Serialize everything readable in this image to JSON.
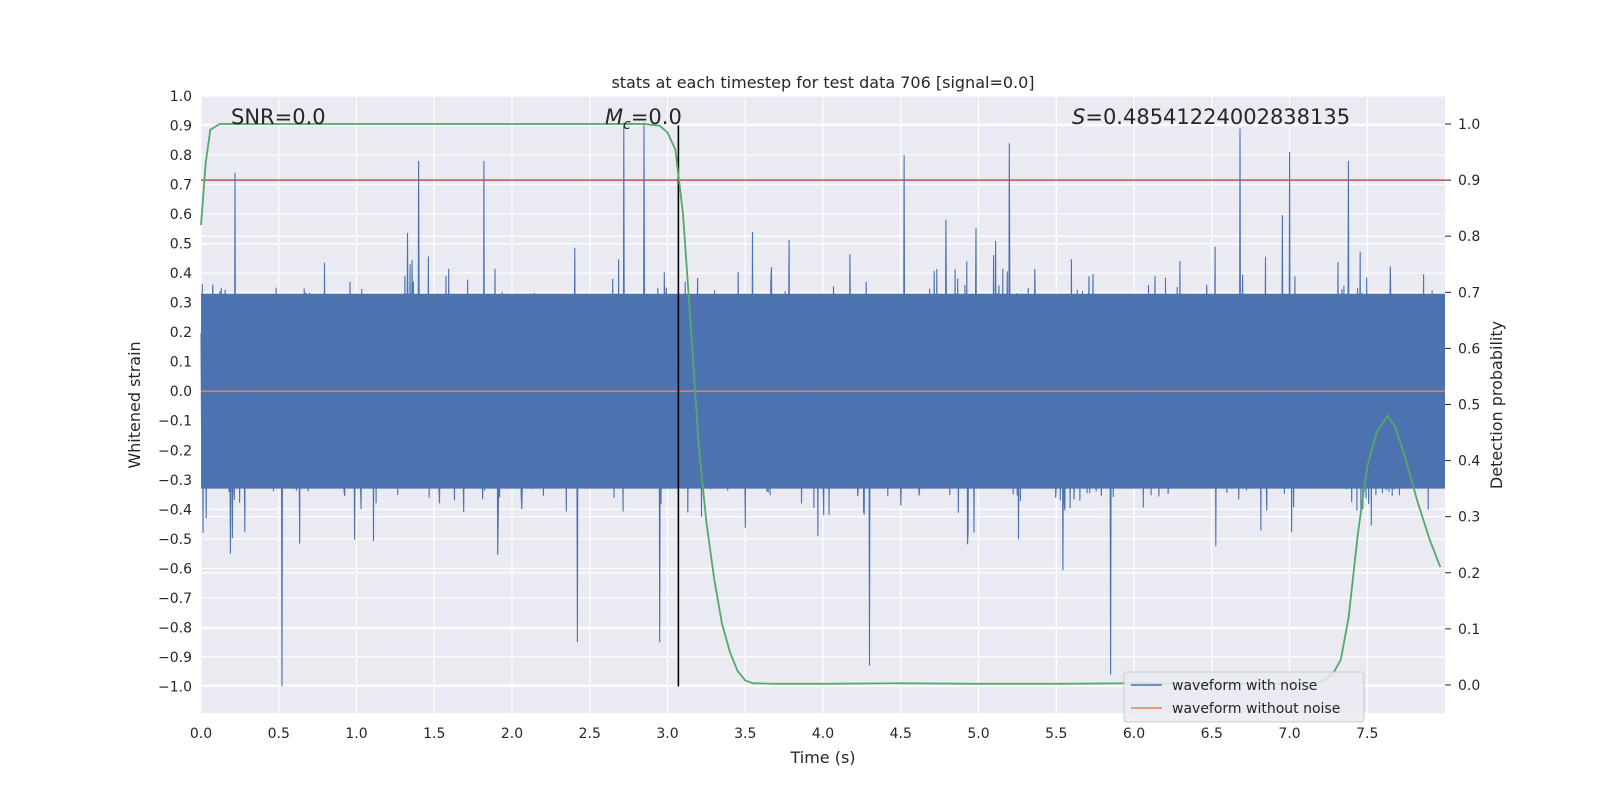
{
  "chart_data": {
    "type": "line",
    "title": "stats at each timestep for test data 706 [signal=0.0]",
    "xlabel": "Time (s)",
    "ylabel": "Whitened strain",
    "y2label": "Detection probability",
    "xlim": [
      0.0,
      8.0
    ],
    "ylim": [
      -1.09,
      1.0
    ],
    "y2lim": [
      -0.05,
      1.05
    ],
    "xticks": [
      "0.0",
      "0.5",
      "1.0",
      "1.5",
      "2.0",
      "2.5",
      "3.0",
      "3.5",
      "4.0",
      "4.5",
      "5.0",
      "5.5",
      "6.0",
      "6.5",
      "7.0",
      "7.5"
    ],
    "yticks": [
      "1.0",
      "0.9",
      "0.8",
      "0.7",
      "0.6",
      "0.5",
      "0.4",
      "0.3",
      "0.2",
      "0.1",
      "0.0",
      "−0.1",
      "−0.2",
      "−0.3",
      "−0.4",
      "−0.5",
      "−0.6",
      "−0.7",
      "−0.8",
      "−0.9",
      "−1.0"
    ],
    "y2ticks": [
      "1.0",
      "0.9",
      "0.8",
      "0.7",
      "0.6",
      "0.5",
      "0.4",
      "0.3",
      "0.2",
      "0.1",
      "0.0"
    ],
    "grid": true,
    "annotations": {
      "snr": "SNR=0.0",
      "mc_symbol": "M",
      "mc_sub": "c",
      "mc_value": "=0.0",
      "s_symbol": "S",
      "s_value": "=0.48541224002838135"
    },
    "threshold": {
      "axis": "y2",
      "value": 0.9,
      "color": "#c44e52"
    },
    "vline": {
      "x": 3.07,
      "color": "#000000"
    },
    "series": [
      {
        "name": "waveform with noise",
        "axis": "y",
        "color": "#4c72b0",
        "note": "dense noise band; core approx ±0.3, envelope peaks",
        "envelope_peaks": [
          {
            "x": 0.22,
            "y": 0.74
          },
          {
            "x": 0.52,
            "y": -1.0
          },
          {
            "x": 1.4,
            "y": 0.78
          },
          {
            "x": 1.82,
            "y": 0.78
          },
          {
            "x": 2.42,
            "y": -0.85
          },
          {
            "x": 2.72,
            "y": 0.91
          },
          {
            "x": 2.85,
            "y": 0.91
          },
          {
            "x": 2.95,
            "y": -0.85
          },
          {
            "x": 4.3,
            "y": -0.93
          },
          {
            "x": 4.52,
            "y": 0.8
          },
          {
            "x": 5.2,
            "y": 0.84
          },
          {
            "x": 5.85,
            "y": -0.96
          },
          {
            "x": 6.68,
            "y": 0.89
          },
          {
            "x": 7.0,
            "y": 0.81
          },
          {
            "x": 7.38,
            "y": 0.78
          }
        ]
      },
      {
        "name": "waveform without noise",
        "axis": "y",
        "color": "#dd8452",
        "x": [
          0.0,
          8.0
        ],
        "y": [
          0.0,
          0.0
        ]
      },
      {
        "name": "detection probability",
        "axis": "y2",
        "color": "#55a868",
        "x": [
          0.0,
          0.03,
          0.06,
          0.12,
          0.5,
          1.0,
          1.5,
          2.0,
          2.5,
          2.7,
          2.85,
          2.95,
          3.0,
          3.05,
          3.1,
          3.15,
          3.2,
          3.25,
          3.3,
          3.35,
          3.4,
          3.45,
          3.5,
          3.55,
          3.7,
          4.0,
          4.5,
          5.0,
          5.5,
          6.0,
          6.5,
          7.0,
          7.2,
          7.28,
          7.33,
          7.38,
          7.44,
          7.5,
          7.56,
          7.63,
          7.68,
          7.75,
          7.82,
          7.9,
          7.97
        ],
        "y": [
          0.82,
          0.93,
          0.99,
          1.0,
          1.0,
          1.0,
          1.0,
          1.0,
          1.0,
          1.0,
          1.0,
          0.997,
          0.985,
          0.955,
          0.84,
          0.64,
          0.43,
          0.29,
          0.19,
          0.11,
          0.06,
          0.025,
          0.008,
          0.003,
          0.002,
          0.002,
          0.003,
          0.002,
          0.002,
          0.003,
          0.002,
          0.002,
          0.005,
          0.02,
          0.045,
          0.12,
          0.27,
          0.39,
          0.45,
          0.48,
          0.46,
          0.4,
          0.33,
          0.26,
          0.21
        ]
      }
    ],
    "legend": {
      "position": "lower-right",
      "entries": [
        "waveform with noise",
        "waveform without noise"
      ]
    }
  }
}
